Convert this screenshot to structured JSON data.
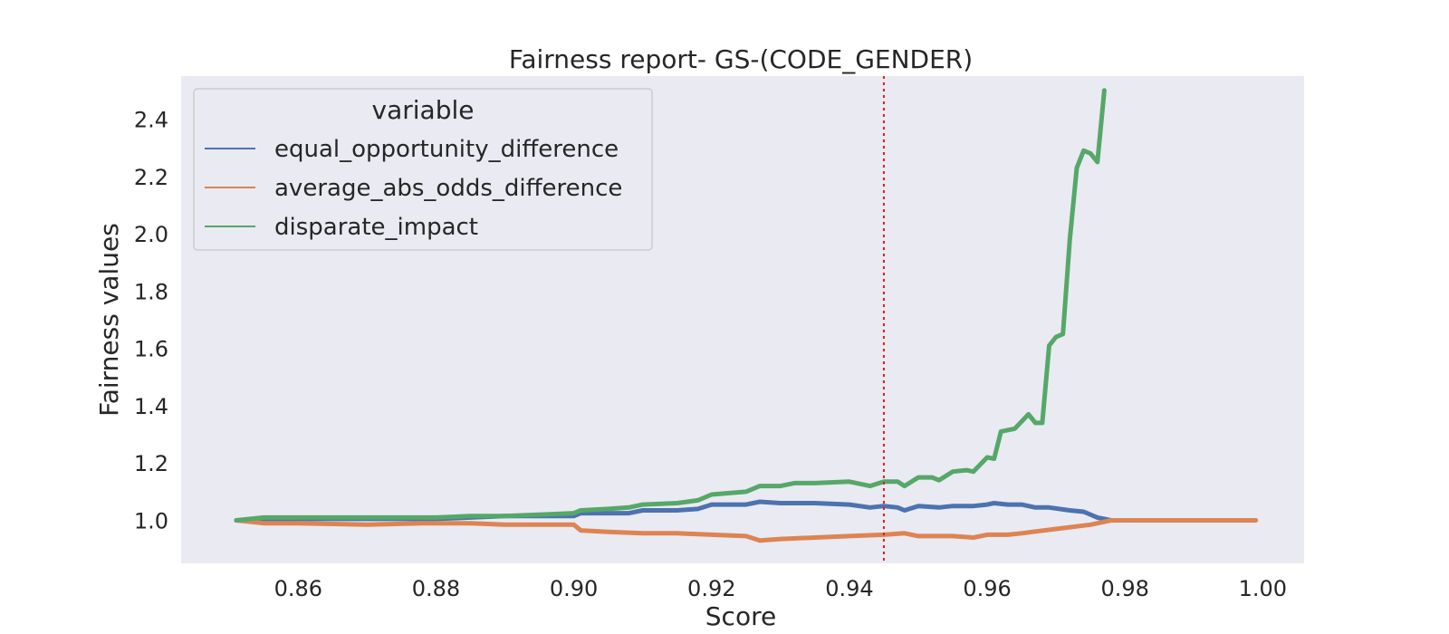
{
  "chart_data": {
    "type": "line",
    "title": "Fairness report- GS-(CODE_GENDER)",
    "xlabel": "Score",
    "ylabel": "Fairness values",
    "xlim": [
      0.843,
      1.006
    ],
    "ylim": [
      0.85,
      2.55
    ],
    "xticks": [
      0.86,
      0.88,
      0.9,
      0.92,
      0.94,
      0.96,
      0.98,
      1.0
    ],
    "xtick_labels": [
      "0.86",
      "0.88",
      "0.90",
      "0.92",
      "0.94",
      "0.96",
      "0.98",
      "1.00"
    ],
    "yticks": [
      1.0,
      1.2,
      1.4,
      1.6,
      1.8,
      2.0,
      2.2,
      2.4
    ],
    "ytick_labels": [
      "1.0",
      "1.2",
      "1.4",
      "1.6",
      "1.8",
      "2.0",
      "2.2",
      "2.4"
    ],
    "grid": false,
    "background": "#eaeaf2",
    "legend": {
      "title": "variable",
      "placement": "upper-left"
    },
    "threshold_line": {
      "x": 0.945,
      "color": "#e41a1c",
      "style": "dotted"
    },
    "series": [
      {
        "name": "equal_opportunity_difference",
        "color": "#4c72b0",
        "x": [
          0.851,
          0.86,
          0.87,
          0.88,
          0.885,
          0.89,
          0.895,
          0.9,
          0.901,
          0.905,
          0.908,
          0.91,
          0.915,
          0.918,
          0.92,
          0.925,
          0.927,
          0.93,
          0.935,
          0.94,
          0.943,
          0.945,
          0.947,
          0.948,
          0.95,
          0.953,
          0.955,
          0.958,
          0.96,
          0.961,
          0.963,
          0.965,
          0.967,
          0.969,
          0.972,
          0.974,
          0.976,
          0.978
        ],
        "y": [
          1.0,
          1.005,
          1.005,
          1.005,
          1.01,
          1.015,
          1.015,
          1.015,
          1.025,
          1.025,
          1.025,
          1.035,
          1.035,
          1.04,
          1.055,
          1.055,
          1.065,
          1.06,
          1.06,
          1.055,
          1.045,
          1.05,
          1.045,
          1.035,
          1.05,
          1.045,
          1.05,
          1.05,
          1.055,
          1.06,
          1.055,
          1.055,
          1.045,
          1.045,
          1.035,
          1.03,
          1.01,
          1.0
        ]
      },
      {
        "name": "average_abs_odds_difference",
        "color": "#dd8452",
        "x": [
          0.851,
          0.855,
          0.86,
          0.87,
          0.878,
          0.885,
          0.89,
          0.895,
          0.9,
          0.901,
          0.905,
          0.91,
          0.915,
          0.92,
          0.925,
          0.927,
          0.93,
          0.935,
          0.94,
          0.945,
          0.948,
          0.95,
          0.955,
          0.958,
          0.96,
          0.963,
          0.965,
          0.97,
          0.975,
          0.978,
          0.98,
          0.99,
          0.999
        ],
        "y": [
          1.0,
          0.99,
          0.99,
          0.985,
          0.99,
          0.99,
          0.985,
          0.985,
          0.985,
          0.965,
          0.96,
          0.955,
          0.955,
          0.95,
          0.945,
          0.93,
          0.935,
          0.94,
          0.945,
          0.95,
          0.955,
          0.945,
          0.945,
          0.94,
          0.95,
          0.95,
          0.955,
          0.97,
          0.985,
          1.0,
          1.0,
          1.0,
          1.0
        ]
      },
      {
        "name": "disparate_impact",
        "color": "#55a868",
        "x": [
          0.851,
          0.855,
          0.86,
          0.87,
          0.88,
          0.885,
          0.89,
          0.895,
          0.9,
          0.901,
          0.905,
          0.908,
          0.91,
          0.915,
          0.918,
          0.92,
          0.925,
          0.927,
          0.93,
          0.932,
          0.935,
          0.94,
          0.943,
          0.945,
          0.947,
          0.948,
          0.95,
          0.952,
          0.953,
          0.955,
          0.957,
          0.958,
          0.96,
          0.961,
          0.962,
          0.964,
          0.966,
          0.967,
          0.968,
          0.969,
          0.97,
          0.971,
          0.972,
          0.973,
          0.974,
          0.975,
          0.976,
          0.977
        ],
        "y": [
          1.0,
          1.01,
          1.01,
          1.01,
          1.01,
          1.015,
          1.015,
          1.02,
          1.025,
          1.035,
          1.04,
          1.045,
          1.055,
          1.06,
          1.07,
          1.09,
          1.1,
          1.12,
          1.12,
          1.13,
          1.13,
          1.135,
          1.12,
          1.135,
          1.135,
          1.12,
          1.15,
          1.15,
          1.14,
          1.17,
          1.175,
          1.17,
          1.22,
          1.215,
          1.31,
          1.32,
          1.37,
          1.34,
          1.34,
          1.61,
          1.64,
          1.65,
          1.98,
          2.23,
          2.29,
          2.28,
          2.25,
          2.5
        ]
      }
    ]
  }
}
